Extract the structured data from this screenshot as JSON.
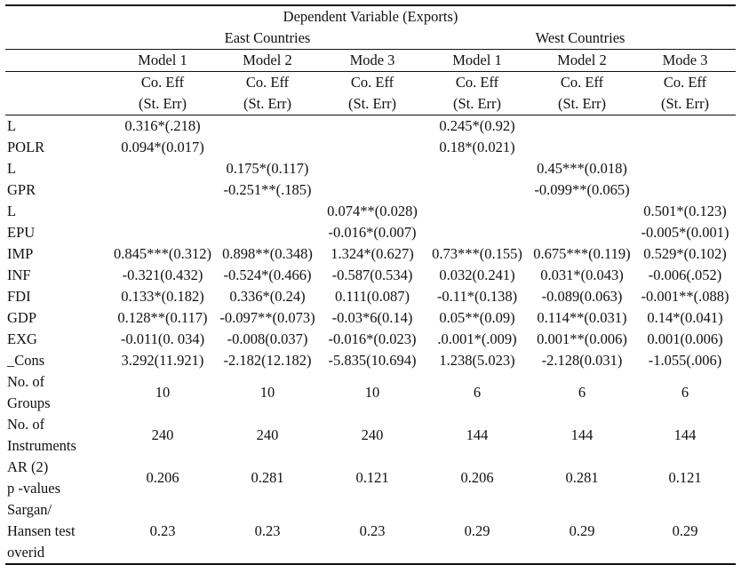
{
  "title": "Dependent Variable (Exports)",
  "groups": [
    "East Countries",
    "West Countries"
  ],
  "models": [
    "Model 1",
    "Model 2",
    "Mode 3",
    "Model 1",
    "Model 2",
    "Mode 3"
  ],
  "coeff_label": "Co. Eff",
  "se_label": "(St. Err)",
  "rows": [
    {
      "label": "L",
      "cells": [
        "0.316*(.218)",
        "",
        "",
        "0.245*(0.92)",
        "",
        ""
      ]
    },
    {
      "label": "POLR",
      "cells": [
        "0.094*(0.017)",
        "",
        "",
        "0.18*(0.021)",
        "",
        ""
      ]
    },
    {
      "label": "L",
      "cells": [
        "",
        "0.175*(0.117)",
        "",
        "",
        "0.45***(0.018)",
        ""
      ]
    },
    {
      "label": "GPR",
      "cells": [
        "",
        "-0.251**(.185)",
        "",
        "",
        "-0.099**(0.065)",
        ""
      ]
    },
    {
      "label": "L",
      "cells": [
        "",
        "",
        "0.074**(0.028)",
        "",
        "",
        "0.501*(0.123)"
      ]
    },
    {
      "label": "EPU",
      "cells": [
        "",
        "",
        "-0.016*(0.007)",
        "",
        "",
        "-0.005*(0.001)"
      ]
    },
    {
      "label": "IMP",
      "cells": [
        "0.845***(0.312)",
        "0.898**(0.348)",
        "1.324*(0.627)",
        "0.73***(0.155)",
        "0.675***(0.119)",
        "0.529*(0.102)"
      ]
    },
    {
      "label": "INF",
      "cells": [
        "-0.321(0.432)",
        "-0.524*(0.466)",
        "-0.587(0.534)",
        "0.032(0.241)",
        "0.031*(0.043)",
        "-0.006(.052)"
      ]
    },
    {
      "label": "FDI",
      "cells": [
        "0.133*(0.182)",
        "0.336*(0.24)",
        "0.111(0.087)",
        "-0.11*(0.138)",
        "-0.089(0.063)",
        "-0.001**(.088)"
      ]
    },
    {
      "label": "GDP",
      "cells": [
        "0.128**(0.117)",
        "-0.097**(0.073)",
        "-0.03*6(0.14)",
        "0.05**(0.09)",
        "0.114**(0.031)",
        "0.14*(0.041)"
      ]
    },
    {
      "label": "EXG",
      "cells": [
        "-0.011(0. 034)",
        "-0.008(0.037)",
        "-0.016*(0.023)",
        ".0.001*(.009)",
        "0.001**(0.006)",
        "0.001(0.006)"
      ]
    },
    {
      "label": "_Cons",
      "cells": [
        "3.292(11.921)",
        "-2.182(12.182)",
        "-5.835(10.694)",
        "1.238(5.023)",
        "-2.128(0.031)",
        "-1.055(.006)"
      ]
    }
  ],
  "stats": [
    {
      "label_lines": [
        "No. of",
        "Groups"
      ],
      "cells": [
        "10",
        "10",
        "10",
        "6",
        "6",
        "6"
      ]
    },
    {
      "label_lines": [
        "No. of",
        "Instruments"
      ],
      "cells": [
        "240",
        "240",
        "240",
        "144",
        "144",
        "144"
      ]
    },
    {
      "label_lines": [
        "AR (2)",
        "p -values"
      ],
      "cells": [
        "0.206",
        "0.281",
        "0.121",
        "0.206",
        "0.281",
        "0.121"
      ]
    },
    {
      "label_lines": [
        "Sargan/",
        "Hansen test",
        "overid"
      ],
      "cells": [
        "0.23",
        "0.23",
        "0.23",
        "0.29",
        "0.29",
        "0.29"
      ]
    }
  ]
}
